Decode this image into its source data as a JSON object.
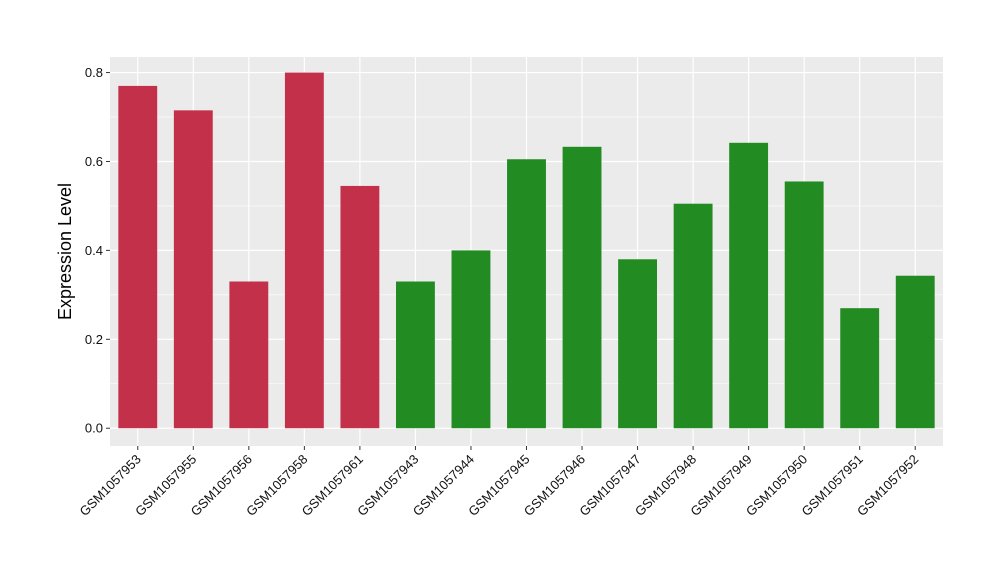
{
  "chart_data": {
    "type": "bar",
    "title": "",
    "xlabel": "",
    "ylabel": "Expression Level",
    "ylim": [
      -0.04,
      0.835
    ],
    "yticks": [
      0.0,
      0.2,
      0.4,
      0.6,
      0.8
    ],
    "ytick_labels": [
      "0.0",
      "0.2",
      "0.4",
      "0.6",
      "0.8"
    ],
    "grid": true,
    "categories": [
      "GSM1057953",
      "GSM1057955",
      "GSM1057956",
      "GSM1057958",
      "GSM1057961",
      "GSM1057943",
      "GSM1057944",
      "GSM1057945",
      "GSM1057946",
      "GSM1057947",
      "GSM1057948",
      "GSM1057949",
      "GSM1057950",
      "GSM1057951",
      "GSM1057952"
    ],
    "values": [
      0.77,
      0.715,
      0.33,
      0.8,
      0.545,
      0.33,
      0.4,
      0.605,
      0.633,
      0.38,
      0.505,
      0.642,
      0.555,
      0.27,
      0.343
    ],
    "bar_colors": [
      "#c3304a",
      "#c3304a",
      "#c3304a",
      "#c3304a",
      "#c3304a",
      "#228b22",
      "#228b22",
      "#228b22",
      "#228b22",
      "#228b22",
      "#228b22",
      "#228b22",
      "#228b22",
      "#228b22",
      "#228b22"
    ],
    "panel_background": "#ebebeb",
    "grid_color": "#ffffff"
  }
}
